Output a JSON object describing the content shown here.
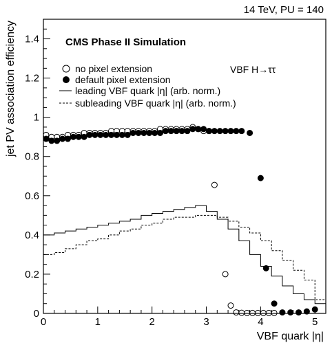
{
  "chart_data": {
    "type": "scatter",
    "title": "",
    "top_right_label": "14 TeV, PU = 140",
    "inner_title": "CMS Phase II Simulation",
    "process_label": "VBF H→ττ",
    "xlabel": "VBF quark |η|",
    "ylabel": "jet PV association efficiency",
    "xlim": [
      0,
      5.2
    ],
    "ylim": [
      0,
      1.5
    ],
    "x_ticks": [
      {
        "v": 0,
        "label": "0"
      },
      {
        "v": 1,
        "label": "1"
      },
      {
        "v": 2,
        "label": "2"
      },
      {
        "v": 3,
        "label": "3"
      },
      {
        "v": 4,
        "label": "4"
      },
      {
        "v": 5,
        "label": "5"
      }
    ],
    "y_ticks": [
      {
        "v": 0,
        "label": "0"
      },
      {
        "v": 0.2,
        "label": "0.2"
      },
      {
        "v": 0.4,
        "label": "0.4"
      },
      {
        "v": 0.6,
        "label": "0.6"
      },
      {
        "v": 0.8,
        "label": "0.8"
      },
      {
        "v": 1.0,
        "label": "1"
      },
      {
        "v": 1.2,
        "label": "1.2"
      },
      {
        "v": 1.4,
        "label": "1.4"
      }
    ],
    "legend": [
      {
        "label": "no pixel extension",
        "style": "open-circle"
      },
      {
        "label": "default pixel extension",
        "style": "filled-circle"
      },
      {
        "label": "leading VBF quark |η| (arb. norm.)",
        "style": "solid-line"
      },
      {
        "label": "subleading VBF quark |η| (arb. norm.)",
        "style": "dashed-line"
      }
    ],
    "series": [
      {
        "name": "no pixel extension",
        "marker": "open",
        "x": [
          0.05,
          0.15,
          0.25,
          0.35,
          0.45,
          0.55,
          0.65,
          0.75,
          0.85,
          0.95,
          1.05,
          1.15,
          1.25,
          1.35,
          1.45,
          1.55,
          1.65,
          1.75,
          1.85,
          1.95,
          2.05,
          2.15,
          2.25,
          2.35,
          2.45,
          2.55,
          2.65,
          2.75,
          2.85,
          2.95,
          3.05,
          3.15,
          3.35,
          3.45,
          3.55,
          3.65,
          3.75,
          3.85,
          3.95,
          4.05,
          4.15,
          4.25
        ],
        "y": [
          0.91,
          0.9,
          0.9,
          0.9,
          0.91,
          0.91,
          0.91,
          0.92,
          0.92,
          0.92,
          0.92,
          0.92,
          0.93,
          0.93,
          0.93,
          0.93,
          0.93,
          0.93,
          0.93,
          0.93,
          0.93,
          0.94,
          0.94,
          0.94,
          0.94,
          0.94,
          0.94,
          0.95,
          0.94,
          0.93,
          0.93,
          0.655,
          0.2,
          0.04,
          0.005,
          0.003,
          0.002,
          0.002,
          0.002,
          0.002,
          0.002,
          0.002
        ],
        "xerr": 0.05
      },
      {
        "name": "default pixel extension",
        "marker": "filled",
        "x": [
          0.05,
          0.15,
          0.25,
          0.35,
          0.45,
          0.55,
          0.65,
          0.75,
          0.85,
          0.95,
          1.05,
          1.15,
          1.25,
          1.35,
          1.45,
          1.55,
          1.65,
          1.75,
          1.85,
          1.95,
          2.05,
          2.15,
          2.25,
          2.35,
          2.45,
          2.55,
          2.65,
          2.75,
          2.85,
          2.95,
          3.05,
          3.15,
          3.25,
          3.35,
          3.45,
          3.55,
          3.65,
          3.8,
          4.0,
          4.1,
          4.25,
          4.4,
          4.55,
          4.7,
          4.85,
          5.0
        ],
        "y": [
          0.89,
          0.88,
          0.88,
          0.89,
          0.89,
          0.9,
          0.9,
          0.9,
          0.91,
          0.91,
          0.91,
          0.91,
          0.91,
          0.91,
          0.91,
          0.91,
          0.92,
          0.92,
          0.92,
          0.92,
          0.92,
          0.92,
          0.93,
          0.93,
          0.93,
          0.93,
          0.93,
          0.94,
          0.94,
          0.94,
          0.93,
          0.93,
          0.93,
          0.93,
          0.93,
          0.93,
          0.93,
          0.92,
          0.69,
          0.23,
          0.05,
          0.005,
          0.005,
          0.005,
          0.01,
          0.02
        ],
        "xerr": 0.05
      },
      {
        "name": "leading VBF quark |η| (arb. norm.)",
        "style": "solid-step",
        "edges": [
          0,
          0.2,
          0.4,
          0.6,
          0.8,
          1.0,
          1.2,
          1.4,
          1.6,
          1.8,
          2.0,
          2.2,
          2.4,
          2.6,
          2.8,
          3.0,
          3.2,
          3.4,
          3.6,
          3.8,
          4.0,
          4.2,
          4.4,
          4.6,
          4.8,
          5.0,
          5.2
        ],
        "values": [
          0.4,
          0.41,
          0.42,
          0.43,
          0.44,
          0.45,
          0.46,
          0.47,
          0.48,
          0.5,
          0.51,
          0.52,
          0.53,
          0.54,
          0.55,
          0.52,
          0.48,
          0.43,
          0.37,
          0.3,
          0.24,
          0.19,
          0.14,
          0.1,
          0.07,
          0.05
        ]
      },
      {
        "name": "subleading VBF quark |η| (arb. norm.)",
        "style": "dashed-step",
        "edges": [
          0,
          0.2,
          0.4,
          0.6,
          0.8,
          1.0,
          1.2,
          1.4,
          1.6,
          1.8,
          2.0,
          2.2,
          2.4,
          2.6,
          2.8,
          3.0,
          3.2,
          3.4,
          3.6,
          3.8,
          4.0,
          4.2,
          4.4,
          4.6,
          4.8,
          5.0,
          5.2
        ],
        "values": [
          0.3,
          0.31,
          0.33,
          0.35,
          0.37,
          0.38,
          0.4,
          0.42,
          0.43,
          0.45,
          0.46,
          0.48,
          0.49,
          0.49,
          0.5,
          0.5,
          0.49,
          0.47,
          0.44,
          0.41,
          0.37,
          0.32,
          0.27,
          0.22,
          0.17,
          0.07
        ]
      }
    ],
    "grid": false,
    "legend_position": "upper-left"
  }
}
